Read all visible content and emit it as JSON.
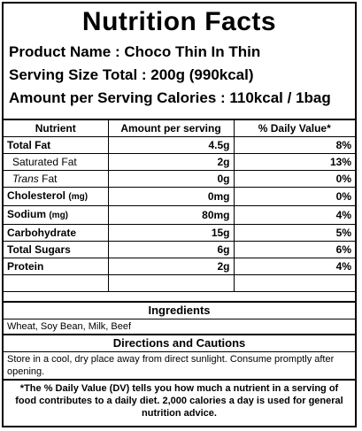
{
  "title": "Nutrition Facts",
  "info": {
    "product_name": "Product Name : Choco Thin In Thin",
    "serving_size": "Serving Size Total : 200g (990kcal)",
    "calories": "Amount per Serving Calories : 110kcal / 1bag"
  },
  "table": {
    "headers": [
      "Nutrient",
      "Amount per serving",
      "% Daily Value*"
    ],
    "rows": [
      {
        "name": "Total Fat",
        "unit": "",
        "amount": "4.5g",
        "dv": "8%"
      },
      {
        "name": "Saturated Fat",
        "unit": "",
        "amount": "2g",
        "dv": "13%"
      },
      {
        "name_italic": "Trans",
        "name_rest": " Fat",
        "amount": "0g",
        "dv": "0%"
      },
      {
        "name": "Cholesterol",
        "unit": "(mg)",
        "amount": "0mg",
        "dv": "0%"
      },
      {
        "name": "Sodium",
        "unit": "(mg)",
        "amount": "80mg",
        "dv": "4%"
      },
      {
        "name": "Carbohydrate",
        "unit": "",
        "amount": "15g",
        "dv": "5%"
      },
      {
        "name": "Total Sugars",
        "unit": "",
        "amount": "6g",
        "dv": "6%"
      },
      {
        "name": "Protein",
        "unit": "",
        "amount": "2g",
        "dv": "4%"
      }
    ]
  },
  "ingredients": {
    "heading": "Ingredients",
    "text": "Wheat, Soy Bean, Milk, Beef"
  },
  "directions": {
    "heading": "Directions and Cautions",
    "text": "Store in a cool, dry place away from direct sunlight. Consume promptly after opening."
  },
  "footnote": "*The % Daily Value (DV) tells you how much a nutrient in a serving of food contributes to a daily diet. 2,000 calories a day is used for general nutrition advice."
}
